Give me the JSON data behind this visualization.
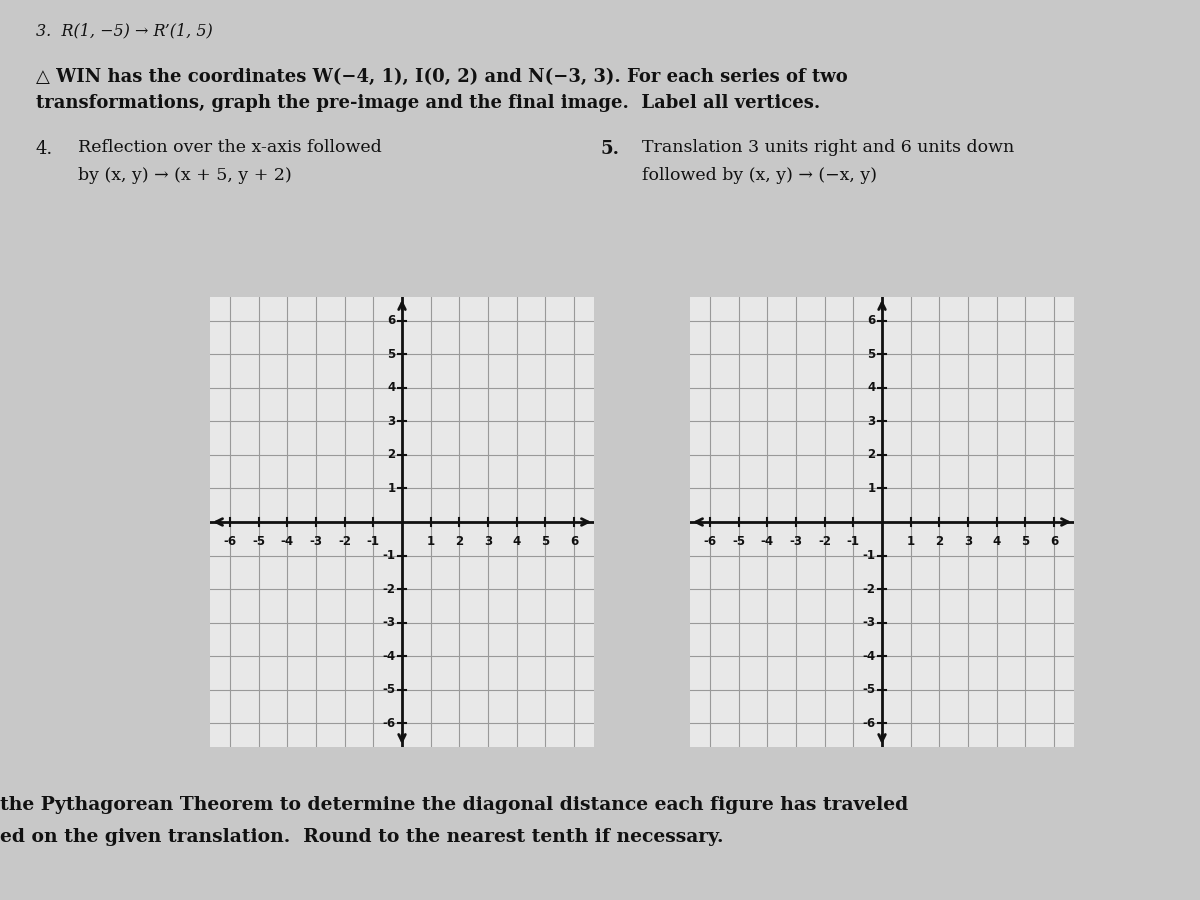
{
  "background_color": "#c8c8c8",
  "grid_bg": "#e8e8e8",
  "top_text": "3.  R(1, −5) → R’(1, 5)",
  "problem_text_line1": "△ WIN has the coordinates W(−4, 1), I(0, 2) and N(−3, 3). For each series of two",
  "problem_text_line2": "transformations, graph the pre-image and the final image.  Label all vertices.",
  "problem4_num": "4.",
  "problem4_line1": "Reflection over the x-axis followed",
  "problem4_line2": "by (x, y) → (x + 5, y + 2)",
  "problem5_num": "5.",
  "problem5_line1": "Translation 3 units right and 6 units down",
  "problem5_line2": "followed by (x, y) → (−x, y)",
  "bottom_text1": "the Pythagorean Theorem to determine the diagonal distance each figure has traveled",
  "bottom_text2": "ed on the given translation.  Round to the nearest tenth if necessary.",
  "grid_color": "#aaaaaa",
  "axis_color": "#111111",
  "grid_line_color": "#999999",
  "grid_xlim": [
    -6.7,
    6.7
  ],
  "grid_ylim": [
    -6.7,
    6.7
  ],
  "grid_ticks": [
    -6,
    -5,
    -4,
    -3,
    -2,
    -1,
    1,
    2,
    3,
    4,
    5,
    6
  ],
  "tick_fontsize": 8.5,
  "text_color": "#111111"
}
